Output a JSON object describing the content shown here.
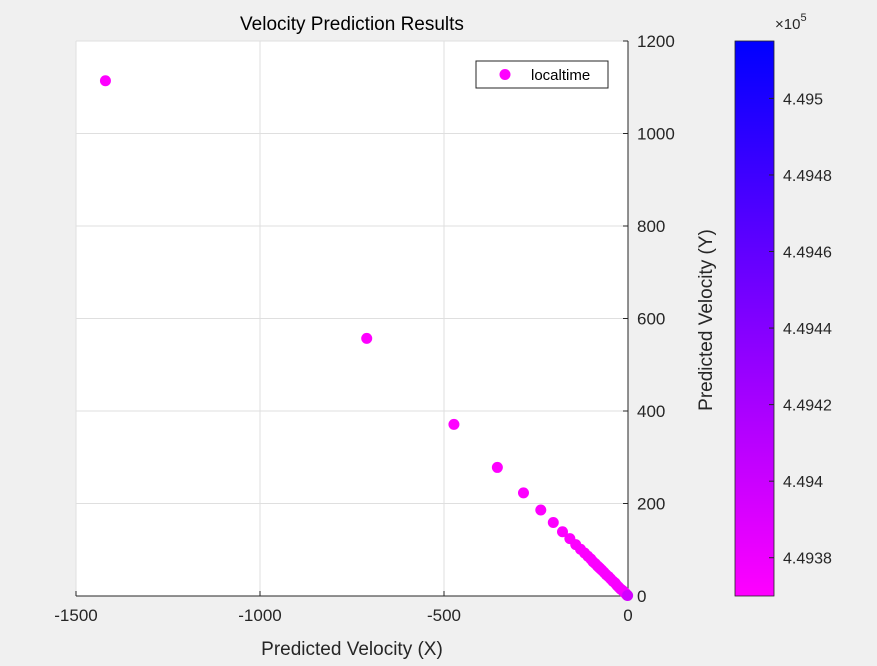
{
  "chart_data": {
    "type": "scatter",
    "title": "Velocity Prediction Results",
    "xlabel": "Predicted Velocity (X)",
    "ylabel": "Predicted Velocity (Y)",
    "xlim": [
      -1500,
      0
    ],
    "ylim": [
      0,
      1200
    ],
    "xticks": [
      -1500,
      -1000,
      -500,
      0
    ],
    "yticks": [
      0,
      200,
      400,
      600,
      800,
      1000,
      1200
    ],
    "y_axis_location": "right",
    "grid": true,
    "legend": {
      "entries": [
        "localtime"
      ],
      "location": "top-right"
    },
    "series": [
      {
        "name": "localtime",
        "points": [
          {
            "x": -1420,
            "y": 1114,
            "c": 449370.5
          },
          {
            "x": -710,
            "y": 557,
            "c": 449370.6
          },
          {
            "x": -473,
            "y": 371,
            "c": 449370.7
          },
          {
            "x": -355,
            "y": 278,
            "c": 449370.8
          },
          {
            "x": -284,
            "y": 223,
            "c": 449370.9
          },
          {
            "x": -237,
            "y": 186,
            "c": 449371.0
          },
          {
            "x": -203,
            "y": 159,
            "c": 449371.1
          },
          {
            "x": -178,
            "y": 139,
            "c": 449371.2
          },
          {
            "x": -158,
            "y": 124,
            "c": 449371.3
          },
          {
            "x": -142,
            "y": 111,
            "c": 449371.4
          },
          {
            "x": -129,
            "y": 101,
            "c": 449371.5
          },
          {
            "x": -118,
            "y": 93,
            "c": 449371.6
          },
          {
            "x": -109,
            "y": 86,
            "c": 449371.7
          },
          {
            "x": -101,
            "y": 80,
            "c": 449371.8
          },
          {
            "x": -95,
            "y": 74,
            "c": 449371.9
          },
          {
            "x": -89,
            "y": 70,
            "c": 449372.0
          },
          {
            "x": -83,
            "y": 65,
            "c": 449372.1
          },
          {
            "x": -79,
            "y": 62,
            "c": 449372.2
          },
          {
            "x": -75,
            "y": 59,
            "c": 449372.3
          },
          {
            "x": -71,
            "y": 56,
            "c": 449372.4
          },
          {
            "x": -65,
            "y": 51,
            "c": 449372.5
          },
          {
            "x": -59,
            "y": 46,
            "c": 449372.6
          },
          {
            "x": -53,
            "y": 42,
            "c": 449372.7
          },
          {
            "x": -47,
            "y": 37,
            "c": 449372.8
          },
          {
            "x": -41,
            "y": 32,
            "c": 449372.9
          },
          {
            "x": -35,
            "y": 28,
            "c": 449373.0
          },
          {
            "x": -30,
            "y": 23,
            "c": 449373.2
          },
          {
            "x": -25,
            "y": 19,
            "c": 449373.4
          },
          {
            "x": -20,
            "y": 15,
            "c": 449373.6
          },
          {
            "x": -15,
            "y": 12,
            "c": 449373.8
          },
          {
            "x": -10,
            "y": 8,
            "c": 449374.0
          },
          {
            "x": -6,
            "y": 5,
            "c": 449374.5
          },
          {
            "x": -3,
            "y": 2,
            "c": 449380.0
          },
          {
            "x": -1,
            "y": 1,
            "c": 449395.5
          }
        ]
      }
    ],
    "colorbar": {
      "colormap": [
        "#ff00ff",
        "#0000ff"
      ],
      "range": [
        4.4937,
        4.49515
      ],
      "ticks": [
        4.4938,
        4.494,
        4.4942,
        4.4944,
        4.4946,
        4.4948,
        4.495
      ],
      "tick_labels": [
        "4.4938",
        "4.494",
        "4.4942",
        "4.4944",
        "4.4946",
        "4.4948",
        "4.495"
      ],
      "exponent_label": "×10",
      "exponent": "5",
      "location": "right"
    }
  }
}
